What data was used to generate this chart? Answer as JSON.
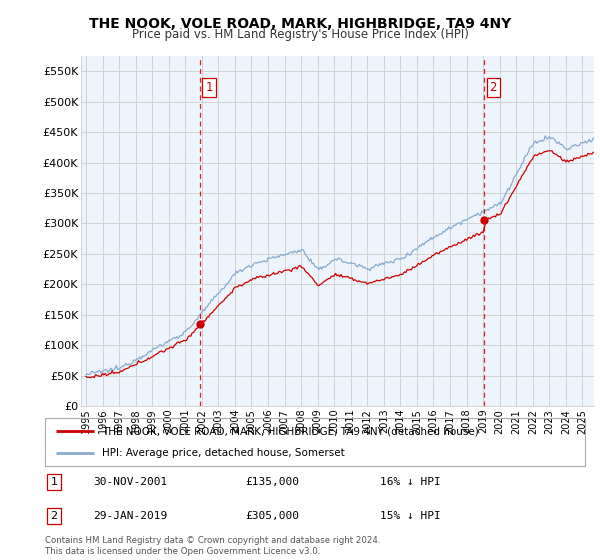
{
  "title": "THE NOOK, VOLE ROAD, MARK, HIGHBRIDGE, TA9 4NY",
  "subtitle": "Price paid vs. HM Land Registry's House Price Index (HPI)",
  "ylim": [
    0,
    575000
  ],
  "yticks": [
    0,
    50000,
    100000,
    150000,
    200000,
    250000,
    300000,
    350000,
    400000,
    450000,
    500000,
    550000
  ],
  "ytick_labels": [
    "£0",
    "£50K",
    "£100K",
    "£150K",
    "£200K",
    "£250K",
    "£300K",
    "£350K",
    "£400K",
    "£450K",
    "£500K",
    "£550K"
  ],
  "xlim_start": 1994.7,
  "xlim_end": 2025.7,
  "xtick_years": [
    1995,
    1996,
    1997,
    1998,
    1999,
    2000,
    2001,
    2002,
    2003,
    2004,
    2005,
    2006,
    2007,
    2008,
    2009,
    2010,
    2011,
    2012,
    2013,
    2014,
    2015,
    2016,
    2017,
    2018,
    2019,
    2020,
    2021,
    2022,
    2023,
    2024,
    2025
  ],
  "property_color": "#cc0000",
  "hpi_color": "#88aacc",
  "hpi_fill_color": "#ddeeff",
  "sale1_x": 2001.917,
  "sale1_y": 135000,
  "sale2_x": 2019.083,
  "sale2_y": 305000,
  "vline_color": "#cc0000",
  "marker_color": "#cc0000",
  "plot_bg_color": "#eef4fb",
  "legend_property": "THE NOOK, VOLE ROAD, MARK, HIGHBRIDGE, TA9 4NY (detached house)",
  "legend_hpi": "HPI: Average price, detached house, Somerset",
  "note1_label": "1",
  "note1_date": "30-NOV-2001",
  "note1_price": "£135,000",
  "note1_hpi": "16% ↓ HPI",
  "note2_label": "2",
  "note2_date": "29-JAN-2019",
  "note2_price": "£305,000",
  "note2_hpi": "15% ↓ HPI",
  "footer": "Contains HM Land Registry data © Crown copyright and database right 2024.\nThis data is licensed under the Open Government Licence v3.0.",
  "bg_color": "#ffffff",
  "grid_color": "#cccccc"
}
